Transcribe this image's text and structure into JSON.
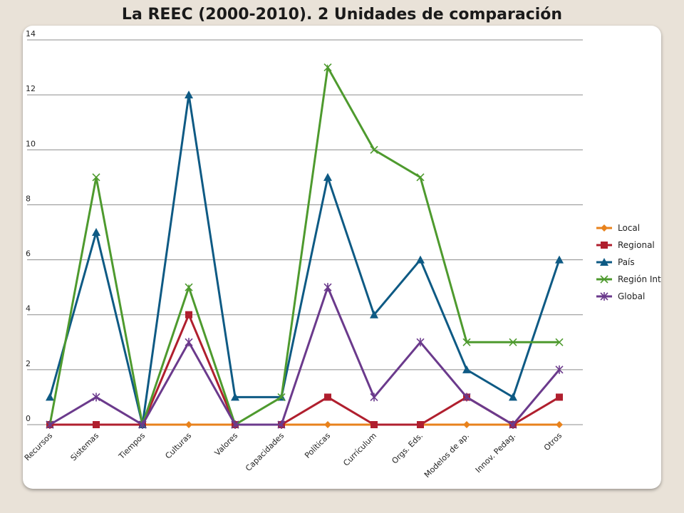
{
  "title": "La REEC (2000-2010). 2 Unidades de comparación",
  "chart_data": {
    "type": "line",
    "title": "La REEC (2000-2010). 2 Unidades de comparación",
    "xlabel": "",
    "ylabel": "",
    "ylim": [
      0,
      14
    ],
    "yticks": [
      0,
      2,
      4,
      6,
      8,
      10,
      12,
      14
    ],
    "grid": true,
    "legend_position": "right",
    "categories": [
      "Recursos",
      "Sistemas",
      "Tiempos",
      "Culturas",
      "Valores",
      "Capacidades",
      "Políticas",
      "Currículum",
      "Orgs. Eds.",
      "Modelos de ap.",
      "Innov. Pedag.",
      "Otros"
    ],
    "series": [
      {
        "name": "Local",
        "color": "#e8821c",
        "marker": "diamond",
        "values": [
          0,
          0,
          0,
          0,
          0,
          0,
          0,
          0,
          0,
          0,
          0,
          0
        ]
      },
      {
        "name": "Regional",
        "color": "#b01f2e",
        "marker": "square",
        "values": [
          0,
          0,
          0,
          4,
          0,
          0,
          1,
          0,
          0,
          1,
          0,
          1
        ]
      },
      {
        "name": "País",
        "color": "#0e5a84",
        "marker": "triangle",
        "values": [
          1,
          7,
          0,
          12,
          1,
          1,
          9,
          4,
          6,
          2,
          1,
          6
        ]
      },
      {
        "name": "Región Int.",
        "color": "#4e9a2e",
        "marker": "x",
        "values": [
          0,
          9,
          0,
          5,
          0,
          1,
          13,
          10,
          9,
          3,
          3,
          3
        ]
      },
      {
        "name": "Global",
        "color": "#6b3a8c",
        "marker": "star",
        "values": [
          0,
          1,
          0,
          3,
          0,
          0,
          5,
          1,
          3,
          1,
          0,
          2
        ]
      }
    ]
  }
}
